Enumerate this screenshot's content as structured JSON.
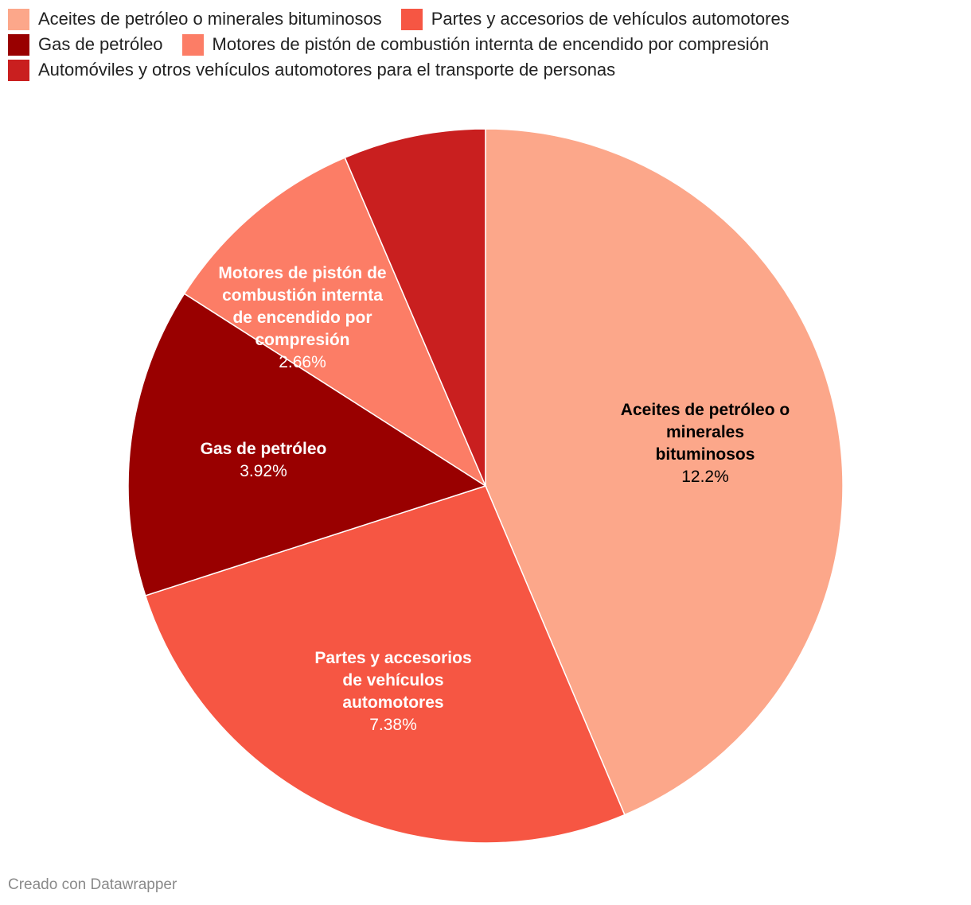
{
  "chart_data": {
    "type": "pie",
    "slices": [
      {
        "name": "Aceites de petróleo o minerales bituminosos",
        "label_lines": [
          "Aceites de petróleo o",
          "minerales",
          "bituminosos"
        ],
        "value": 12.2,
        "value_label": "12.2%",
        "color": "#fca78a",
        "text_color": "#000000"
      },
      {
        "name": "Partes y accesorios de vehículos automotores",
        "label_lines": [
          "Partes y accesorios",
          "de vehículos",
          "automotores"
        ],
        "value": 7.38,
        "value_label": "7.38%",
        "color": "#f65643",
        "text_color": "#ffffff"
      },
      {
        "name": "Gas de petróleo",
        "label_lines": [
          "Gas de petróleo"
        ],
        "value": 3.92,
        "value_label": "3.92%",
        "color": "#990000",
        "text_color": "#ffffff"
      },
      {
        "name": "Motores de pistón de combustión internta de encendido por compresión",
        "label_lines": [
          "Motores de pistón de",
          "combustión internta",
          "de encendido por",
          "compresión"
        ],
        "value": 2.66,
        "value_label": "2.66%",
        "color": "#fc7d66",
        "text_color": "#ffffff"
      },
      {
        "name": "Automóviles y otros vehículos automotores para el transporte de personas",
        "label_lines": [],
        "value": 1.8,
        "value_label": "",
        "color": "#c91f1f",
        "text_color": "#ffffff"
      }
    ],
    "legend_position": "top",
    "start_angle_deg": 0,
    "direction": "clockwise"
  },
  "legend": {
    "rows": [
      [
        0,
        1
      ],
      [
        2,
        3
      ],
      [
        4
      ]
    ]
  },
  "footer": {
    "credit": "Creado con Datawrapper"
  }
}
